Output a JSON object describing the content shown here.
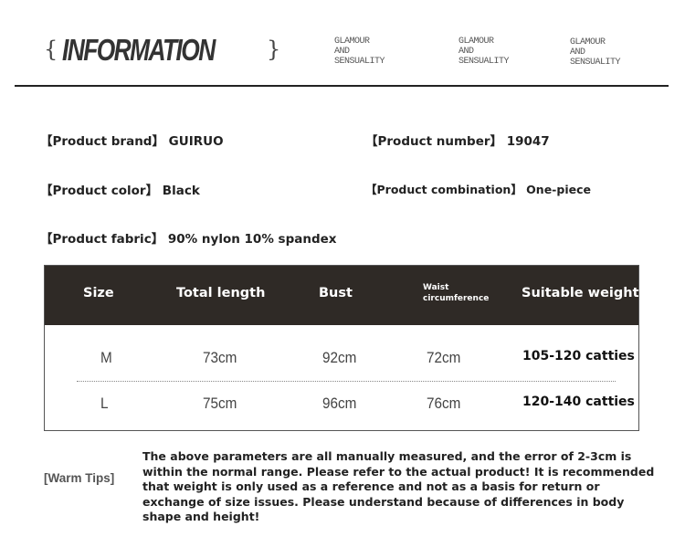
{
  "header": {
    "brace_open": "{",
    "title": "INFORMATION",
    "brace_close": "}",
    "taglines": [
      {
        "l1": "GLAMOUR",
        "l2": "AND",
        "l3": "SENSUALITY"
      },
      {
        "l1": "GLAMOUR",
        "l2": "AND",
        "l3": "SENSUALITY"
      },
      {
        "l1": "GLAMOUR",
        "l2": "AND",
        "l3": "SENSUALITY"
      }
    ]
  },
  "info": {
    "brand": "【Product brand】 GUIRUO",
    "number": "【Product number】 19047",
    "color": "【Product color】 Black",
    "combination": "【Product combination】 One-piece",
    "fabric": "【Product fabric】 90% nylon 10% spandex"
  },
  "table": {
    "headers": [
      "Size",
      "Total length",
      "Bust",
      "Waist circumference",
      "Suitable weight"
    ],
    "rows": [
      [
        "M",
        "73cm",
        "92cm",
        "72cm",
        "105-120 catties"
      ],
      [
        "L",
        "75cm",
        "96cm",
        "76cm",
        "120-140 catties"
      ]
    ]
  },
  "tips": {
    "label": "[Warm Tips]",
    "text": "The above parameters are all manually measured, and the error of 2-3cm is within the normal range. Please refer to the actual product! It is recommended that weight is only used as a reference and not as a basis for return or exchange of size issues. Please understand because of differences in body shape and height!"
  }
}
